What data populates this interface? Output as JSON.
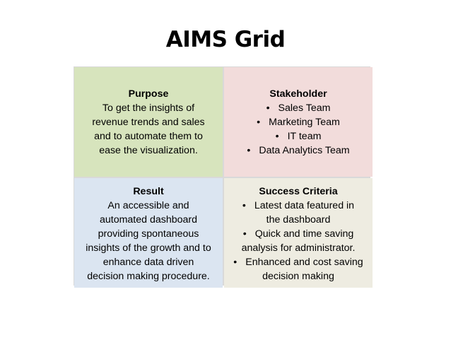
{
  "title": "AIMS Grid",
  "purpose": {
    "heading": "Purpose",
    "lines": [
      "To get the insights of",
      "revenue trends and sales",
      "and to automate them to",
      "ease the visualization."
    ]
  },
  "stakeholder": {
    "heading": "Stakeholder",
    "items": [
      "Sales Team",
      "Marketing Team",
      "IT team",
      "Data Analytics Team"
    ]
  },
  "result": {
    "heading": "Result",
    "lines": [
      "An accessible and",
      "automated dashboard",
      "providing spontaneous",
      "insights of the growth and to",
      "enhance data driven",
      "decision making procedure."
    ]
  },
  "success": {
    "heading": "Success Criteria",
    "items": [
      {
        "first": "Latest data featured in",
        "cont": "the dashboard"
      },
      {
        "first": "Quick and time saving",
        "cont": "analysis for administrator."
      },
      {
        "first": "Enhanced and cost saving",
        "cont": "decision making"
      }
    ]
  },
  "colors": {
    "purpose_bg": "#d7e4bd",
    "stakeholder_bg": "#f2dcdb",
    "result_bg": "#dbe5f1",
    "success_bg": "#eeece1"
  }
}
